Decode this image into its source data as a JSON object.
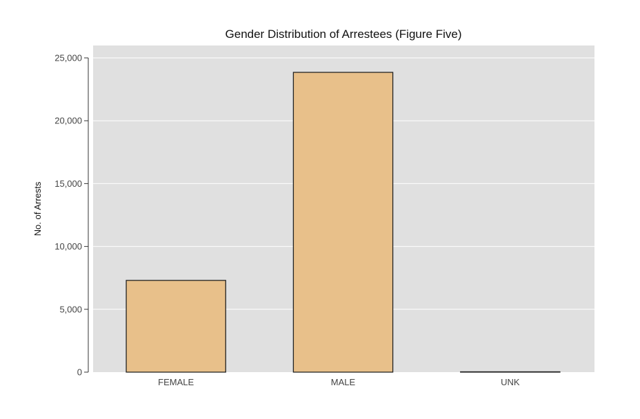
{
  "chart_data": {
    "type": "bar",
    "title": "Gender Distribution of Arrestees (Figure Five)",
    "xlabel": "",
    "ylabel": "No. of Arrests",
    "categories": [
      "FEMALE",
      "MALE",
      "UNK"
    ],
    "values": [
      7300,
      23850,
      15
    ],
    "ylim": [
      0,
      25000
    ],
    "yticks": [
      0,
      5000,
      10000,
      15000,
      20000,
      25000
    ],
    "ytick_labels": [
      "0",
      "5,000",
      "10,000",
      "15,000",
      "20,000",
      "25,000"
    ],
    "grid": true,
    "legend": "none",
    "colors": {
      "bar_fill": "#e8c08a",
      "bar_stroke": "#222222",
      "plot_background": "#e0e0e0",
      "grid": "#ffffff"
    }
  }
}
